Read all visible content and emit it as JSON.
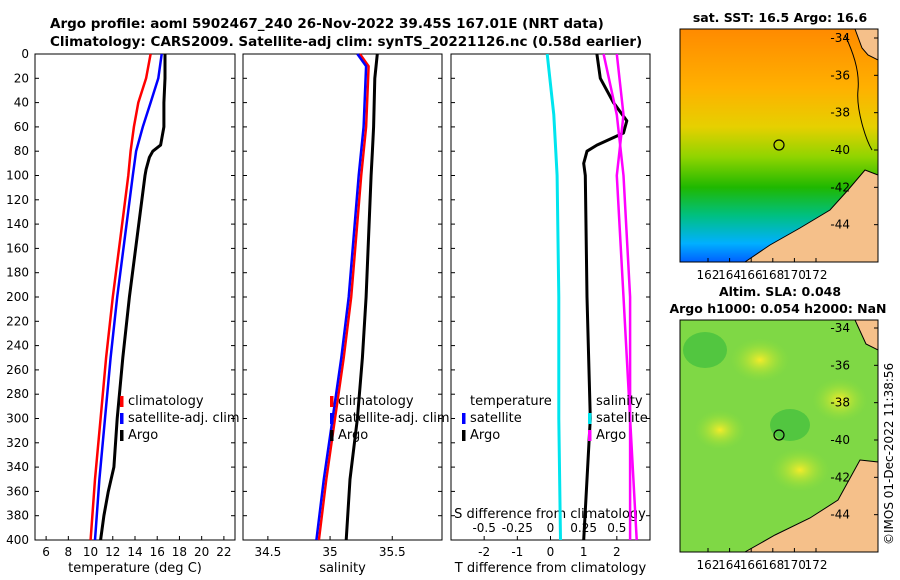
{
  "title_line1": "Argo profile: aoml 5902467_240 26-Nov-2022 39.45S 167.01E (NRT data)",
  "title_line2": "Climatology: CARS2009. Satellite-adj clim: synTS_20221126.nc (0.58d earlier)",
  "timestamp": "©IMOS 01-Dec-2022 11:38:56",
  "colors": {
    "climatology": "#ff0000",
    "satellite": "#0000ff",
    "argo": "#000000",
    "temp_diff_sat": "#00e5ee",
    "sal_diff_sat": "#ff00ff",
    "sal_diff_argo": "#ff00ff"
  },
  "chart_data": [
    {
      "type": "line",
      "title": "temperature profile",
      "xlabel": "temperature (deg C)",
      "ylabel": "",
      "xlim": [
        5,
        23
      ],
      "ylim": [
        400,
        0
      ],
      "xticks": [
        "6",
        "8",
        "10",
        "12",
        "14",
        "16",
        "18",
        "20",
        "22"
      ],
      "yticks": [
        "0",
        "20",
        "40",
        "60",
        "80",
        "100",
        "120",
        "140",
        "160",
        "180",
        "200",
        "220",
        "240",
        "260",
        "280",
        "300",
        "320",
        "340",
        "360",
        "380",
        "400"
      ],
      "legend": [
        "climatology",
        "satellite-adj. clim",
        "Argo"
      ],
      "series": [
        {
          "name": "climatology",
          "depth": [
            0,
            20,
            40,
            60,
            80,
            100,
            150,
            200,
            250,
            300,
            350,
            400
          ],
          "values": [
            15.4,
            15.0,
            14.3,
            13.9,
            13.6,
            13.4,
            12.7,
            12.0,
            11.4,
            10.9,
            10.4,
            10.0
          ]
        },
        {
          "name": "satellite-adj. clim",
          "depth": [
            0,
            20,
            40,
            60,
            80,
            100,
            150,
            200,
            250,
            300,
            350,
            400
          ],
          "values": [
            16.4,
            16.1,
            15.4,
            14.7,
            14.1,
            13.8,
            13.1,
            12.4,
            11.8,
            11.3,
            10.8,
            10.4
          ]
        },
        {
          "name": "Argo",
          "depth": [
            0,
            20,
            40,
            60,
            75,
            80,
            85,
            95,
            100,
            150,
            200,
            250,
            300,
            340,
            360,
            380,
            400
          ],
          "values": [
            16.7,
            16.7,
            16.6,
            16.6,
            16.3,
            15.6,
            15.3,
            15.0,
            14.9,
            14.2,
            13.5,
            12.9,
            12.4,
            12.1,
            11.6,
            11.2,
            10.9
          ]
        }
      ]
    },
    {
      "type": "line",
      "title": "salinity profile",
      "xlabel": "salinity",
      "xlim": [
        34.3,
        35.9
      ],
      "ylim": [
        400,
        0
      ],
      "xticks": [
        "34.5",
        "35",
        "35.5"
      ],
      "legend": [
        "climatology",
        "satellite-adj. clim",
        "Argo"
      ],
      "series": [
        {
          "name": "climatology",
          "depth": [
            0,
            10,
            60,
            100,
            150,
            200,
            250,
            300,
            350,
            400
          ],
          "values": [
            35.24,
            35.31,
            35.29,
            35.25,
            35.21,
            35.17,
            35.11,
            35.04,
            34.97,
            34.91
          ]
        },
        {
          "name": "satellite-adj. clim",
          "depth": [
            0,
            10,
            60,
            100,
            150,
            200,
            250,
            300,
            350,
            400
          ],
          "values": [
            35.22,
            35.29,
            35.27,
            35.23,
            35.19,
            35.15,
            35.09,
            35.02,
            34.95,
            34.89
          ]
        },
        {
          "name": "Argo",
          "depth": [
            0,
            20,
            60,
            80,
            100,
            150,
            200,
            250,
            300,
            350,
            400
          ],
          "values": [
            35.38,
            35.36,
            35.35,
            35.34,
            35.33,
            35.31,
            35.29,
            35.26,
            35.22,
            35.16,
            35.13
          ]
        }
      ]
    },
    {
      "type": "line",
      "title": "difference from climatology",
      "xlabel": "T difference from climatology",
      "xlabel_top": "S difference from climatology",
      "xlim": [
        -3,
        3
      ],
      "ylim": [
        400,
        0
      ],
      "xticks": [
        "-2",
        "-1",
        "0",
        "1",
        "2"
      ],
      "xticks_top": [
        "-0.5",
        "-0.25",
        "0",
        "0.25",
        "0.5"
      ],
      "legend_left_title": "temperature",
      "legend_left": [
        "satellite",
        "Argo"
      ],
      "legend_right_title": "salinity",
      "legend_right": [
        "satellite",
        "Argo"
      ],
      "series": [
        {
          "name": "temperature satellite",
          "depth": [
            0,
            50,
            100,
            200,
            300,
            400
          ],
          "values": [
            -0.1,
            0.1,
            0.2,
            0.25,
            0.25,
            0.3
          ]
        },
        {
          "name": "temperature Argo",
          "depth": [
            0,
            20,
            40,
            55,
            65,
            75,
            80,
            90,
            100,
            200,
            300,
            400
          ],
          "values": [
            1.4,
            1.5,
            1.9,
            2.3,
            2.2,
            1.4,
            1.1,
            1.0,
            1.05,
            1.1,
            1.2,
            1.0
          ]
        },
        {
          "name": "salinity satellite",
          "depth": [
            0,
            50,
            100,
            200,
            300,
            400
          ],
          "values": [
            0.5,
            0.55,
            0.5,
            0.55,
            0.6,
            0.6
          ]
        },
        {
          "name": "salinity Argo",
          "depth": [
            0,
            50,
            100,
            200,
            300,
            400
          ],
          "values": [
            0.4,
            0.5,
            0.55,
            0.6,
            0.6,
            0.65
          ]
        }
      ]
    },
    {
      "type": "heatmap",
      "title": "sat. SST: 16.5 Argo: 16.6",
      "xticks": [
        "162",
        "164",
        "166",
        "168",
        "170",
        "172"
      ],
      "yticks": [
        "-34",
        "-36",
        "-38",
        "-40",
        "-42",
        "-44"
      ]
    },
    {
      "type": "heatmap",
      "title": "Altim. SLA: 0.048",
      "title2": "Argo h1000: 0.054 h2000: NaN",
      "xticks": [
        "162",
        "164",
        "166",
        "168",
        "170",
        "172"
      ],
      "yticks": [
        "-34",
        "-36",
        "-38",
        "-40",
        "-42",
        "-44"
      ]
    }
  ]
}
